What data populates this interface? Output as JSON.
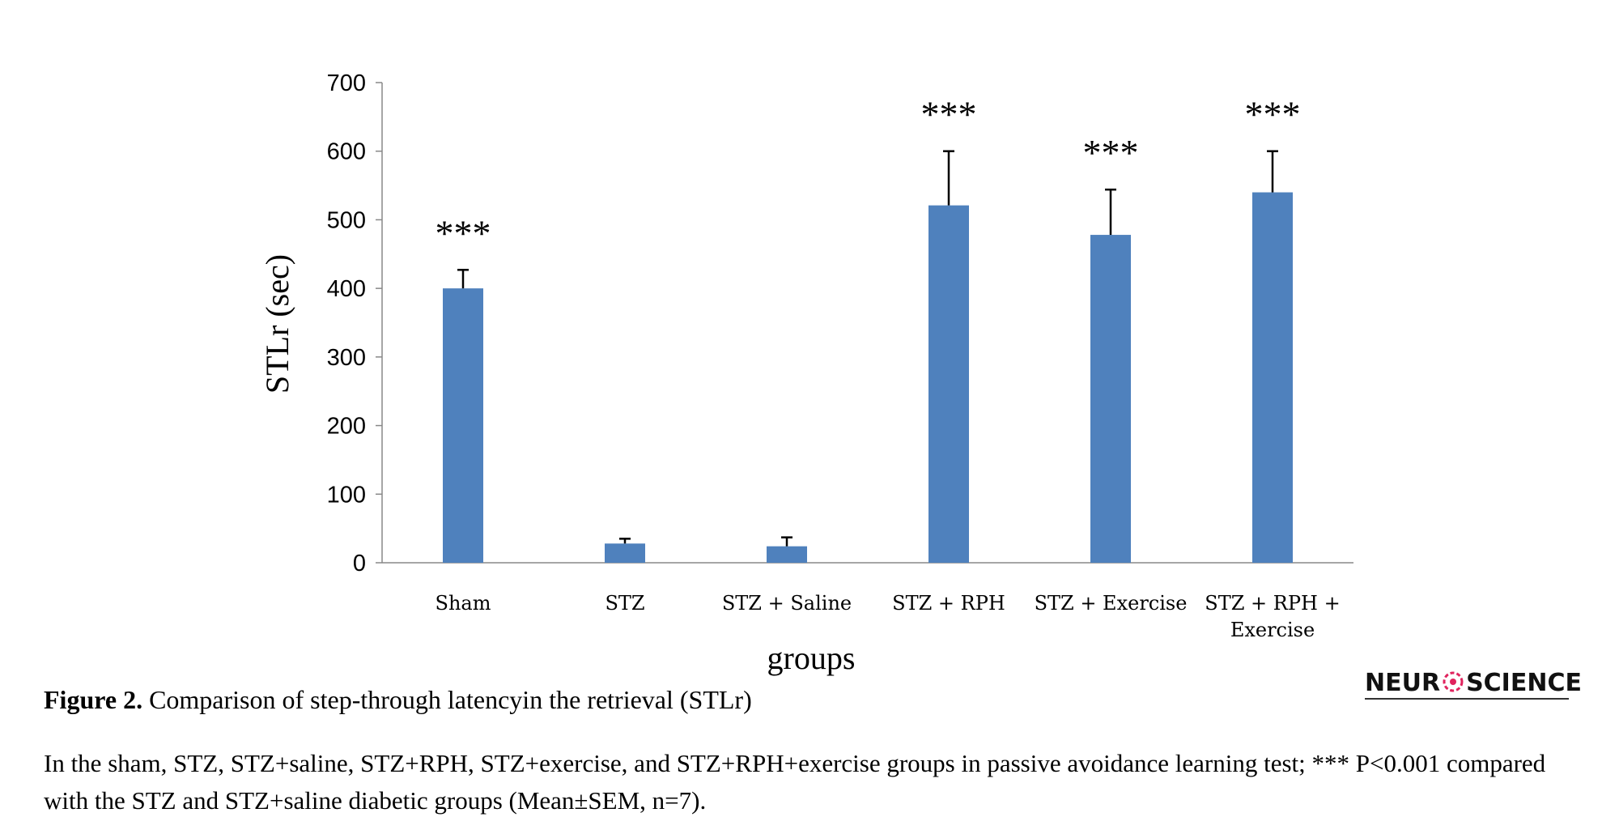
{
  "chart_data": {
    "type": "bar",
    "categories": [
      "Sham",
      "STZ",
      "STZ + Saline",
      "STZ + RPH",
      "STZ + Exercise",
      "STZ + RPH + Exercise"
    ],
    "category_lines": [
      [
        "Sham"
      ],
      [
        "STZ"
      ],
      [
        "STZ + Saline"
      ],
      [
        "STZ + RPH"
      ],
      [
        "STZ + Exercise"
      ],
      [
        "STZ + RPH +",
        "Exercise"
      ]
    ],
    "values": [
      400,
      28,
      24,
      521,
      478,
      540
    ],
    "errors": [
      27,
      7,
      13,
      79,
      66,
      60
    ],
    "significance": [
      "***",
      "",
      "",
      "***",
      "***",
      "***"
    ],
    "xlabel": "groups",
    "ylabel": "STLr (sec)",
    "ylim": [
      0,
      700
    ],
    "yticks": [
      0,
      100,
      200,
      300,
      400,
      500,
      600,
      700
    ],
    "bar_color": "#4f81bd",
    "grid": false
  },
  "caption": {
    "label": "Figure 2.",
    "title": "Comparison of step-through latencyin the retrieval (STLr)",
    "body": "In the sham, STZ, STZ+saline, STZ+RPH, STZ+exercise, and STZ+RPH+exercise groups in passive avoidance learning test; *** P<0.001 compared with the STZ and STZ+saline diabetic groups (Mean±SEM, n=7)."
  },
  "logo": {
    "text_left": "NEUR",
    "text_right": "SCIENCE",
    "accent_color": "#e0245e"
  }
}
